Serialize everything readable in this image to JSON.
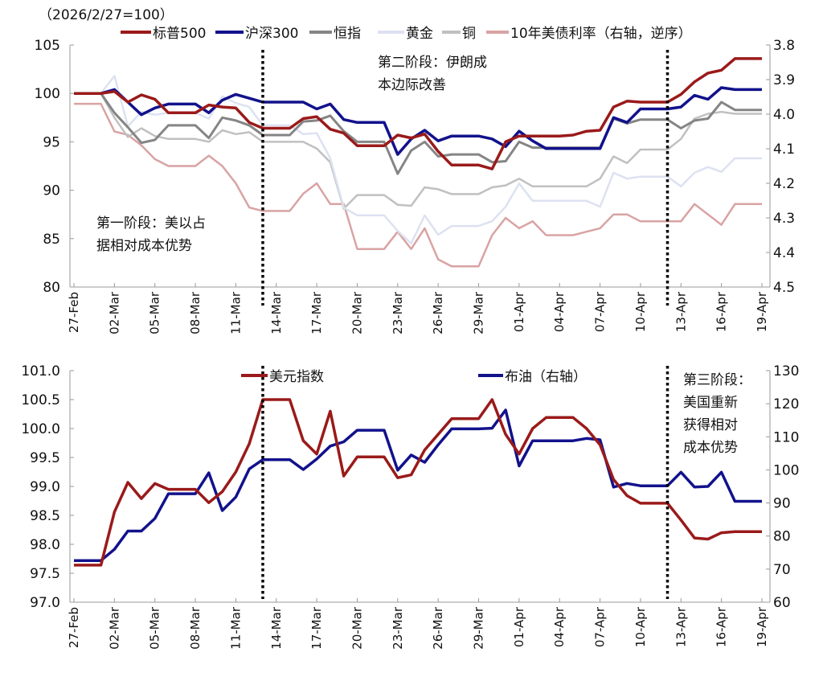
{
  "chart_data": [
    {
      "type": "line",
      "note_label": "（2026/2/27=100）",
      "x": [
        "2026-02-27",
        "2026-02-28",
        "2026-03-01",
        "2026-03-02",
        "2026-03-03",
        "2026-03-04",
        "2026-03-05",
        "2026-03-06",
        "2026-03-07",
        "2026-03-08",
        "2026-03-09",
        "2026-03-10",
        "2026-03-11",
        "2026-03-12",
        "2026-03-13",
        "2026-03-14",
        "2026-03-15",
        "2026-03-16",
        "2026-03-17",
        "2026-03-18",
        "2026-03-19",
        "2026-03-20",
        "2026-03-21",
        "2026-03-22",
        "2026-03-23",
        "2026-03-24",
        "2026-03-25",
        "2026-03-26",
        "2026-03-27",
        "2026-03-28",
        "2026-03-29",
        "2026-03-30",
        "2026-03-31",
        "2026-04-01",
        "2026-04-02",
        "2026-04-03",
        "2026-04-04",
        "2026-04-05",
        "2026-04-06",
        "2026-04-07",
        "2026-04-08",
        "2026-04-09",
        "2026-04-10",
        "2026-04-11",
        "2026-04-12",
        "2026-04-13",
        "2026-04-14",
        "2026-04-15",
        "2026-04-16",
        "2026-04-17",
        "2026-04-18",
        "2026-04-19"
      ],
      "x_tick_labels": [
        "27-Feb",
        "02-Mar",
        "05-Mar",
        "08-Mar",
        "11-Mar",
        "14-Mar",
        "17-Mar",
        "20-Mar",
        "23-Mar",
        "26-Mar",
        "29-Mar",
        "01-Apr",
        "04-Apr",
        "07-Apr",
        "10-Apr",
        "13-Apr",
        "16-Apr",
        "19-Apr"
      ],
      "ylim": [
        80,
        105
      ],
      "y_ticks": [
        "105",
        "100",
        "95",
        "90",
        "85",
        "80"
      ],
      "y2lim": [
        3.8,
        4.5
      ],
      "y2_reversed": true,
      "y2_ticks": [
        "3.8",
        "3.9",
        "4.0",
        "4.1",
        "4.2",
        "4.3",
        "4.4",
        "4.5"
      ],
      "legend_placement": "top",
      "series": [
        {
          "name": "标普500",
          "axis": "left",
          "color": "#9a1a1a",
          "width": 3.5,
          "values": [
            100,
            100,
            100,
            100.2,
            99.1,
            99.85,
            99.4,
            98.0,
            98.0,
            98.0,
            98.8,
            98.6,
            98.5,
            97.0,
            96.4,
            96.4,
            96.4,
            97.4,
            97.6,
            96.3,
            95.9,
            94.6,
            94.6,
            94.6,
            95.7,
            95.4,
            95.8,
            94.0,
            92.6,
            92.6,
            92.6,
            92.2,
            95.0,
            95.6,
            95.6,
            95.6,
            95.6,
            95.7,
            96.1,
            96.2,
            98.6,
            99.2,
            99.1,
            99.1,
            99.1,
            99.9,
            101.2,
            102.1,
            102.4,
            103.6,
            103.6,
            103.6
          ]
        },
        {
          "name": "沪深300",
          "axis": "left",
          "color": "#12128c",
          "width": 3.5,
          "values": [
            100,
            100,
            100,
            100.4,
            99.1,
            97.8,
            98.5,
            98.9,
            98.9,
            98.9,
            98.0,
            99.3,
            99.9,
            99.5,
            99.1,
            99.1,
            99.1,
            99.1,
            98.4,
            98.9,
            97.3,
            97.0,
            97.0,
            97.0,
            93.7,
            95.3,
            96.2,
            95.1,
            95.6,
            95.6,
            95.6,
            95.3,
            94.5,
            96.1,
            95.1,
            94.3,
            94.3,
            94.3,
            94.3,
            94.3,
            97.5,
            97.0,
            98.4,
            98.4,
            98.4,
            98.6,
            99.8,
            99.4,
            100.6,
            100.4,
            100.4,
            100.4
          ]
        },
        {
          "name": "恒指",
          "axis": "left",
          "color": "#858585",
          "width": 3,
          "values": [
            100,
            100,
            100,
            98.0,
            96.5,
            94.9,
            95.2,
            96.7,
            96.7,
            96.7,
            95.4,
            97.5,
            97.2,
            96.7,
            95.7,
            95.7,
            95.7,
            97.1,
            97.2,
            97.7,
            96.1,
            95.0,
            95.0,
            95.0,
            91.7,
            94.1,
            95.0,
            93.5,
            93.7,
            93.7,
            93.7,
            92.9,
            93.0,
            95.0,
            94.4,
            94.4,
            94.4,
            94.4,
            94.4,
            94.4,
            97.4,
            96.9,
            97.3,
            97.3,
            97.3,
            96.4,
            97.2,
            97.4,
            99.1,
            98.3,
            98.3,
            98.3
          ]
        },
        {
          "name": "黄金",
          "axis": "left",
          "color": "#dde2f1",
          "width": 2.5,
          "values": [
            100,
            100,
            100,
            101.8,
            96.6,
            98.1,
            97.8,
            98.0,
            98.0,
            98.0,
            97.4,
            99.7,
            99.0,
            98.6,
            96.7,
            96.7,
            96.7,
            95.8,
            95.9,
            93.3,
            88.2,
            87.4,
            87.4,
            87.4,
            85.8,
            84.5,
            87.4,
            85.4,
            86.3,
            86.3,
            86.3,
            86.8,
            88.3,
            90.7,
            88.9,
            88.9,
            88.9,
            88.9,
            88.9,
            88.3,
            91.8,
            91.2,
            91.4,
            91.4,
            91.4,
            90.4,
            91.8,
            92.4,
            91.9,
            93.3,
            93.3,
            93.3
          ]
        },
        {
          "name": "铜",
          "axis": "left",
          "color": "#c0c0c0",
          "width": 2.5,
          "values": [
            100,
            100,
            100,
            97.5,
            95.5,
            96.4,
            95.6,
            95.3,
            95.3,
            95.3,
            95.0,
            96.2,
            95.8,
            96.0,
            95.0,
            95.0,
            95.0,
            95.0,
            94.3,
            92.9,
            88.1,
            89.5,
            89.5,
            89.5,
            88.5,
            88.4,
            90.3,
            90.1,
            89.6,
            89.6,
            89.6,
            90.3,
            90.5,
            91.2,
            90.4,
            90.4,
            90.4,
            90.4,
            90.4,
            91.2,
            93.5,
            92.8,
            94.2,
            94.2,
            94.2,
            95.3,
            97.4,
            97.9,
            98.1,
            97.9,
            97.9,
            97.9
          ]
        },
        {
          "name": "10年美债利率（右轴，逆序）",
          "axis": "right",
          "color": "#d9a3a3",
          "width": 2.5,
          "values": [
            3.97,
            3.97,
            3.97,
            4.05,
            4.06,
            4.09,
            4.13,
            4.15,
            4.15,
            4.15,
            4.12,
            4.15,
            4.2,
            4.27,
            4.28,
            4.28,
            4.28,
            4.23,
            4.2,
            4.26,
            4.26,
            4.39,
            4.39,
            4.39,
            4.34,
            4.39,
            4.33,
            4.42,
            4.44,
            4.44,
            4.44,
            4.35,
            4.3,
            4.33,
            4.31,
            4.35,
            4.35,
            4.35,
            4.34,
            4.33,
            4.29,
            4.29,
            4.31,
            4.31,
            4.31,
            4.31,
            4.26,
            4.29,
            4.32,
            4.26,
            4.26,
            4.26
          ]
        }
      ],
      "phase_lines": [
        "2026-03-13",
        "2026-04-12"
      ],
      "annotations": [
        {
          "lines": [
            "第一阶段：美以占",
            "据相对成本优势"
          ]
        },
        {
          "lines": [
            "第二阶段：伊朗成",
            "本边际改善"
          ]
        }
      ]
    },
    {
      "type": "line",
      "x_tick_labels": [
        "27-Feb",
        "02-Mar",
        "05-Mar",
        "08-Mar",
        "11-Mar",
        "14-Mar",
        "17-Mar",
        "20-Mar",
        "23-Mar",
        "26-Mar",
        "29-Mar",
        "01-Apr",
        "04-Apr",
        "07-Apr",
        "10-Apr",
        "13-Apr",
        "16-Apr",
        "19-Apr"
      ],
      "ylim": [
        97.0,
        101.0
      ],
      "y_ticks": [
        "101.0",
        "100.5",
        "100.0",
        "99.5",
        "99.0",
        "98.5",
        "98.0",
        "97.5",
        "97.0"
      ],
      "y2lim": [
        60,
        130
      ],
      "y2_ticks": [
        "130",
        "120",
        "110",
        "100",
        "90",
        "80",
        "70",
        "60"
      ],
      "legend_placement": "top",
      "series": [
        {
          "name": "美元指数",
          "axis": "left",
          "color": "#9a1a1a",
          "width": 3.5,
          "values": [
            97.64,
            97.64,
            97.64,
            98.56,
            99.07,
            98.79,
            99.05,
            98.95,
            98.95,
            98.95,
            98.72,
            98.91,
            99.25,
            99.74,
            100.5,
            100.5,
            100.5,
            99.79,
            99.56,
            100.3,
            99.18,
            99.51,
            99.51,
            99.51,
            99.15,
            99.2,
            99.63,
            99.9,
            100.17,
            100.17,
            100.17,
            100.5,
            99.9,
            99.56,
            100.0,
            100.19,
            100.19,
            100.19,
            100.0,
            99.72,
            99.12,
            98.84,
            98.71,
            98.71,
            98.71,
            98.42,
            98.11,
            98.09,
            98.2,
            98.22,
            98.22,
            98.22
          ]
        },
        {
          "name": "布油（右轴）",
          "axis": "right",
          "color": "#12128c",
          "width": 3.5,
          "values": [
            72.6,
            72.6,
            72.6,
            76.0,
            81.5,
            81.5,
            85.3,
            92.8,
            92.8,
            92.8,
            99.1,
            87.7,
            91.8,
            100.3,
            103.1,
            103.1,
            103.1,
            100.1,
            103.3,
            107.2,
            108.5,
            112.0,
            112.0,
            112.0,
            99.9,
            104.5,
            102.3,
            107.6,
            112.4,
            112.4,
            112.4,
            112.6,
            118.1,
            101.2,
            108.8,
            108.8,
            108.8,
            108.8,
            109.5,
            109.1,
            94.8,
            95.9,
            95.2,
            95.2,
            95.2,
            99.3,
            94.8,
            95.0,
            99.3,
            90.5,
            90.5,
            90.5
          ]
        }
      ],
      "phase_lines": [
        "2026-03-13",
        "2026-04-12"
      ],
      "annotations": [
        {
          "lines": [
            "第三阶段：",
            "美国重新",
            "获得相对",
            "成本优势"
          ]
        }
      ]
    }
  ]
}
